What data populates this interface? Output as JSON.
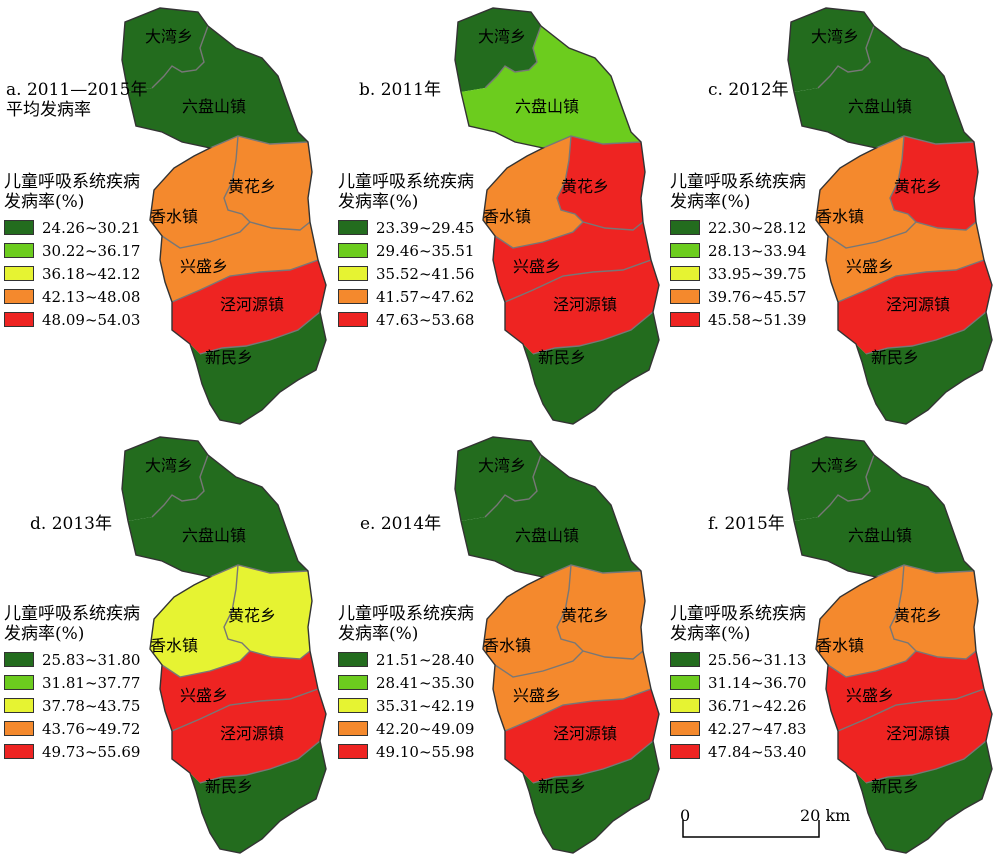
{
  "colors": {
    "class1": "#236c1e",
    "class2": "#6ccc1e",
    "class3": "#e6f332",
    "class4": "#f4892d",
    "class5": "#ee2422",
    "outline": "#333333",
    "inner_boundary": "#777777"
  },
  "legend_title": "儿童呼吸系统疾病\n发病率(%)",
  "townships": {
    "dawan": "大湾乡",
    "liupanshan": "六盘山镇",
    "huanghua": "黄花乡",
    "xiangshui": "香水镇",
    "xingsheng": "兴盛乡",
    "jingheyuan": "泾河源镇",
    "xinmin": "新民乡"
  },
  "panels": [
    {
      "id": "a",
      "title": "a. 2011—2015年\n平均发病率",
      "legend": [
        "24.26~30.21",
        "30.22~36.17",
        "36.18~42.12",
        "42.13~48.08",
        "48.09~54.03"
      ],
      "classes": {
        "dawan": 1,
        "liupanshan": 1,
        "huanghua": 4,
        "xiangshui": 4,
        "xingsheng": 4,
        "jingheyuan": 5,
        "xinmin": 1
      }
    },
    {
      "id": "b",
      "title": "b. 2011年",
      "legend": [
        "23.39~29.45",
        "29.46~35.51",
        "35.52~41.56",
        "41.57~47.62",
        "47.63~53.68"
      ],
      "classes": {
        "dawan": 1,
        "liupanshan": 2,
        "huanghua": 5,
        "xiangshui": 4,
        "xingsheng": 5,
        "jingheyuan": 5,
        "xinmin": 1
      }
    },
    {
      "id": "c",
      "title": "c. 2012年",
      "legend": [
        "22.30~28.12",
        "28.13~33.94",
        "33.95~39.75",
        "39.76~45.57",
        "45.58~51.39"
      ],
      "classes": {
        "dawan": 1,
        "liupanshan": 1,
        "huanghua": 5,
        "xiangshui": 4,
        "xingsheng": 4,
        "jingheyuan": 5,
        "xinmin": 1
      }
    },
    {
      "id": "d",
      "title": "d. 2013年",
      "legend": [
        "25.83~31.80",
        "31.81~37.77",
        "37.78~43.75",
        "43.76~49.72",
        "49.73~55.69"
      ],
      "classes": {
        "dawan": 1,
        "liupanshan": 1,
        "huanghua": 3,
        "xiangshui": 3,
        "xingsheng": 5,
        "jingheyuan": 5,
        "xinmin": 1
      }
    },
    {
      "id": "e",
      "title": "e. 2014年",
      "legend": [
        "21.51~28.40",
        "28.41~35.30",
        "35.31~42.19",
        "42.20~49.09",
        "49.10~55.98"
      ],
      "classes": {
        "dawan": 1,
        "liupanshan": 1,
        "huanghua": 4,
        "xiangshui": 4,
        "xingsheng": 4,
        "jingheyuan": 5,
        "xinmin": 1
      }
    },
    {
      "id": "f",
      "title": "f. 2015年",
      "legend": [
        "25.56~31.13",
        "31.14~36.70",
        "36.71~42.26",
        "42.27~47.83",
        "47.84~53.40"
      ],
      "classes": {
        "dawan": 1,
        "liupanshan": 1,
        "huanghua": 4,
        "xiangshui": 4,
        "xingsheng": 5,
        "jingheyuan": 5,
        "xinmin": 1
      }
    }
  ],
  "scale": {
    "start": "0",
    "end": "20 km"
  }
}
